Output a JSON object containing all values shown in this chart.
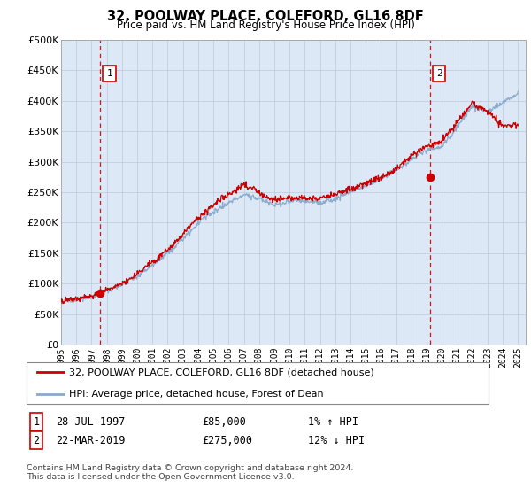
{
  "title": "32, POOLWAY PLACE, COLEFORD, GL16 8DF",
  "subtitle": "Price paid vs. HM Land Registry's House Price Index (HPI)",
  "x_start": 1995.0,
  "x_end": 2025.5,
  "y_ticks": [
    0,
    50000,
    100000,
    150000,
    200000,
    250000,
    300000,
    350000,
    400000,
    450000,
    500000
  ],
  "y_labels": [
    "£0",
    "£50K",
    "£100K",
    "£150K",
    "£200K",
    "£250K",
    "£300K",
    "£350K",
    "£400K",
    "£450K",
    "£500K"
  ],
  "ylim": [
    0,
    500000
  ],
  "background_color": "#dce8f5",
  "plot_bg_color": "#dce8f5",
  "red_line_color": "#cc0000",
  "blue_line_color": "#88aacc",
  "vline_color": "#cc0000",
  "marker1_x": 1997.58,
  "marker1_y": 85000,
  "marker2_x": 2019.22,
  "marker2_y": 275000,
  "legend_label_red": "32, POOLWAY PLACE, COLEFORD, GL16 8DF (detached house)",
  "legend_label_blue": "HPI: Average price, detached house, Forest of Dean",
  "annotation1_date": "28-JUL-1997",
  "annotation1_price": "£85,000",
  "annotation1_hpi": "1% ↑ HPI",
  "annotation2_date": "22-MAR-2019",
  "annotation2_price": "£275,000",
  "annotation2_hpi": "12% ↓ HPI",
  "footer": "Contains HM Land Registry data © Crown copyright and database right 2024.\nThis data is licensed under the Open Government Licence v3.0.",
  "grid_color": "#b0c4d8",
  "xtick_years": [
    1995,
    1996,
    1997,
    1998,
    1999,
    2000,
    2001,
    2002,
    2003,
    2004,
    2005,
    2006,
    2007,
    2008,
    2009,
    2010,
    2011,
    2012,
    2013,
    2014,
    2015,
    2016,
    2017,
    2018,
    2019,
    2020,
    2021,
    2022,
    2023,
    2024,
    2025
  ]
}
